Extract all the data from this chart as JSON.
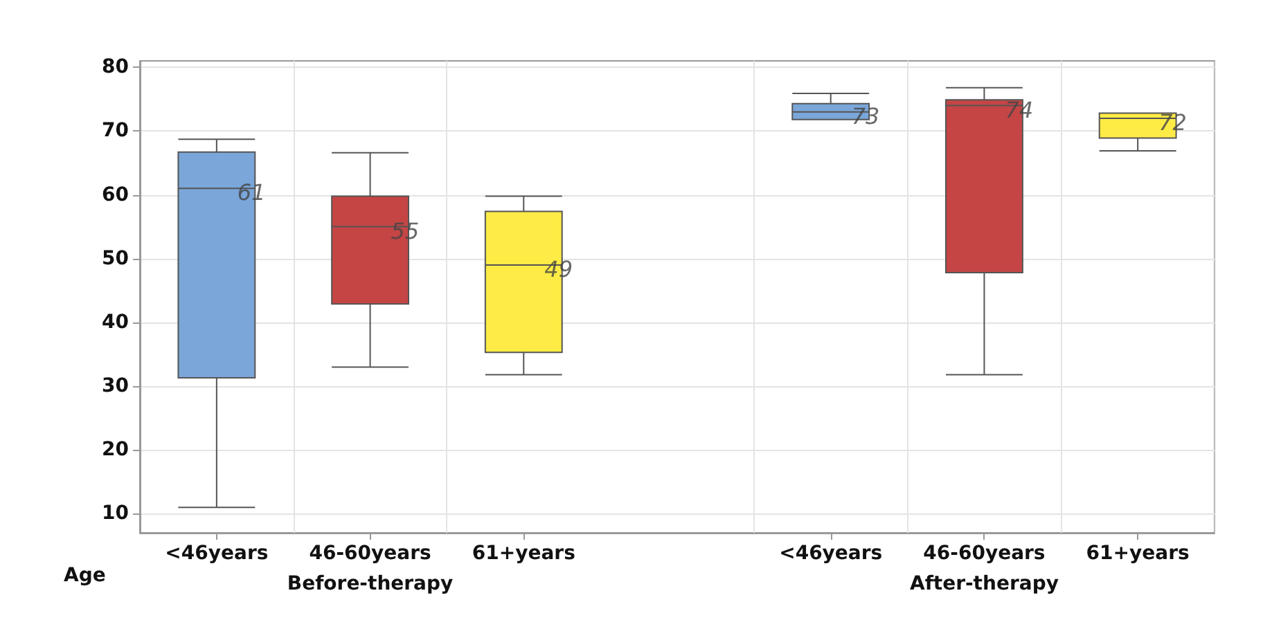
{
  "chart_data": {
    "type": "box",
    "xlabel": "Age",
    "categories": [
      "<46years",
      "46-60years",
      "61+years",
      null,
      "<46years",
      "46-60years",
      "61+years"
    ],
    "boxes": [
      {
        "low": 11,
        "q1": 31.3,
        "median": 61,
        "q3": 66.7,
        "high": 68.7
      },
      {
        "low": 33,
        "q1": 42.9,
        "median": 55,
        "q3": 59.8,
        "high": 66.6
      },
      {
        "low": 31.8,
        "q1": 35.3,
        "median": 49,
        "q3": 57.4,
        "high": 59.8
      },
      null,
      {
        "low": 71.8,
        "q1": 71.8,
        "median": 73,
        "q3": 74.3,
        "high": 75.9
      },
      {
        "low": 31.8,
        "q1": 47.8,
        "median": 74,
        "q3": 74.9,
        "high": 76.8
      },
      {
        "low": 66.9,
        "q1": 68.9,
        "median": 72,
        "q3": 72.8,
        "high": 72.8
      }
    ],
    "colors": [
      "#7aa6d9",
      "#c54545",
      "#ffeb45",
      null,
      "#7aa6d9",
      "#c54545",
      "#ffeb45"
    ],
    "annotations": [
      "Before-therapy",
      "After-therapy"
    ],
    "ylim": [
      7,
      81
    ],
    "yticks": [
      10,
      20,
      30,
      40,
      50,
      60,
      70,
      80
    ],
    "value_labels": [
      "61",
      "55",
      "49",
      null,
      "73",
      "74",
      "72"
    ],
    "grid": true
  }
}
